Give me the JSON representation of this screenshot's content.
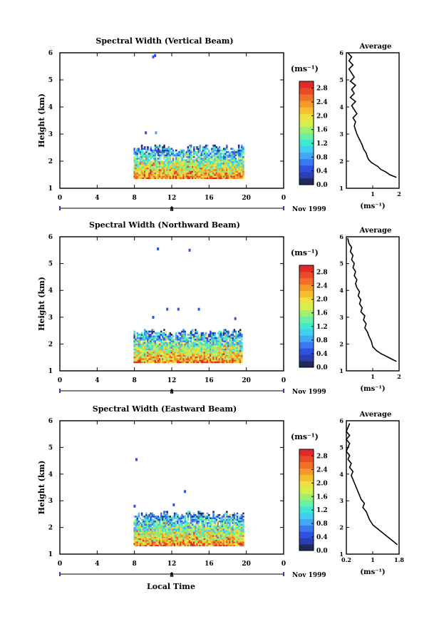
{
  "figure": {
    "xlabel": "Local Time",
    "date_label": "Nov 1999",
    "colorbar_unit": "(ms⁻¹)",
    "colorbar_ticks": [
      "0.0",
      "0.4",
      "0.8",
      "1.2",
      "1.6",
      "2.0",
      "2.4",
      "2.8"
    ],
    "colorbar_range": [
      0.0,
      3.0
    ],
    "colormap": [
      "#1e2a5a",
      "#2b3fae",
      "#3050e0",
      "#3a78f0",
      "#46a6f5",
      "#3fd0f0",
      "#40e8d2",
      "#6af0a4",
      "#a0f070",
      "#d4f050",
      "#f0e040",
      "#f5c030",
      "#f59a28",
      "#f07028",
      "#e84a2a",
      "#e02a2a"
    ],
    "colors": {
      "low_width": "#3050e0",
      "mid_width": "#40e8d2",
      "high_width": "#e02a2a"
    }
  },
  "chart_data": [
    {
      "type": "heatmap",
      "title": "Spectral Width (Vertical Beam)",
      "xlabel": "",
      "ylabel": "Height (km)",
      "xlim": [
        0,
        24
      ],
      "x_ticks": [
        "0",
        "4",
        "8",
        "12",
        "16",
        "20",
        "0"
      ],
      "ylim": [
        1,
        6
      ],
      "y_ticks": [
        "1",
        "2",
        "3",
        "4",
        "5",
        "6"
      ],
      "date_scale_tick": "8",
      "data_extent": {
        "time_start": 7.9,
        "time_end": 19.6,
        "height_min": 1.35,
        "height_max": 2.6
      },
      "isolated_echoes": [
        {
          "time": 9.9,
          "height": 5.85,
          "width": 0.5
        },
        {
          "time": 10.1,
          "height": 5.9,
          "width": 0.5
        },
        {
          "time": 9.1,
          "height": 3.05,
          "width": 0.5
        },
        {
          "time": 10.2,
          "height": 3.05,
          "width": 0.9
        }
      ]
    },
    {
      "type": "heatmap",
      "title": "Spectral Width (Northward Beam)",
      "xlabel": "",
      "ylabel": "Height (km)",
      "xlim": [
        0,
        24
      ],
      "x_ticks": [
        "0",
        "4",
        "8",
        "12",
        "16",
        "20",
        "0"
      ],
      "ylim": [
        1,
        6
      ],
      "y_ticks": [
        "1",
        "2",
        "3",
        "4",
        "5",
        "6"
      ],
      "date_scale_tick": "8",
      "data_extent": {
        "time_start": 7.9,
        "time_end": 19.5,
        "height_min": 1.3,
        "height_max": 2.55
      },
      "isolated_echoes": [
        {
          "time": 10.4,
          "height": 5.55,
          "width": 0.5
        },
        {
          "time": 13.8,
          "height": 5.5,
          "width": 0.5
        },
        {
          "time": 11.4,
          "height": 3.3,
          "width": 0.5
        },
        {
          "time": 12.6,
          "height": 3.3,
          "width": 0.5
        },
        {
          "time": 14.8,
          "height": 3.3,
          "width": 0.5
        },
        {
          "time": 9.9,
          "height": 3.0,
          "width": 0.5
        },
        {
          "time": 18.7,
          "height": 2.95,
          "width": 0.5
        }
      ]
    },
    {
      "type": "heatmap",
      "title": "Spectral Width (Eastward Beam)",
      "xlabel": "Local Time",
      "ylabel": "Height (km)",
      "xlim": [
        0,
        24
      ],
      "x_ticks": [
        "0",
        "4",
        "8",
        "12",
        "16",
        "20",
        "0"
      ],
      "ylim": [
        1,
        6
      ],
      "y_ticks": [
        "1",
        "2",
        "3",
        "4",
        "5",
        "6"
      ],
      "date_scale_tick": "8",
      "data_extent": {
        "time_start": 7.9,
        "time_end": 19.6,
        "height_min": 1.3,
        "height_max": 2.6
      },
      "isolated_echoes": [
        {
          "time": 8.1,
          "height": 4.55,
          "width": 0.5
        },
        {
          "time": 13.3,
          "height": 3.35,
          "width": 0.5
        },
        {
          "time": 7.9,
          "height": 2.8,
          "width": 0.5
        },
        {
          "time": 12.1,
          "height": 2.85,
          "width": 0.5
        }
      ]
    },
    {
      "type": "line",
      "title": "Average",
      "xlabel": "(ms⁻¹)",
      "ylabel": "",
      "xlim": [
        0,
        2
      ],
      "x_ticks": [
        "1",
        "2"
      ],
      "ylim": [
        1,
        6
      ],
      "y_ticks": [
        "1",
        "2",
        "3",
        "4",
        "5",
        "6"
      ],
      "x": [
        1.9,
        1.65,
        1.5,
        1.3,
        1.2,
        0.95,
        0.85,
        0.8,
        0.75,
        0.65,
        0.6,
        0.55,
        0.5,
        0.45,
        0.4,
        0.35,
        0.3,
        0.35,
        0.25,
        0.4,
        0.3,
        0.2,
        0.35,
        0.15,
        0.3,
        0.2,
        0.35,
        0.15,
        0.3,
        0.2,
        0.1,
        0.25,
        0.1,
        0.2,
        0.05
      ],
      "y": [
        1.4,
        1.5,
        1.6,
        1.7,
        1.8,
        1.95,
        2.05,
        2.15,
        2.3,
        2.45,
        2.6,
        2.7,
        2.8,
        2.9,
        3.0,
        3.15,
        3.3,
        3.45,
        3.6,
        3.75,
        3.9,
        4.05,
        4.2,
        4.35,
        4.5,
        4.65,
        4.8,
        4.95,
        5.1,
        5.25,
        5.4,
        5.55,
        5.7,
        5.85,
        6.0
      ]
    },
    {
      "type": "line",
      "title": "Average",
      "xlabel": "(ms⁻¹)",
      "ylabel": "",
      "xlim": [
        0,
        2
      ],
      "x_ticks": [
        "1",
        "2"
      ],
      "ylim": [
        1,
        6
      ],
      "y_ticks": [
        "1",
        "2",
        "3",
        "4",
        "5",
        "6"
      ],
      "x": [
        1.9,
        1.7,
        1.5,
        1.3,
        1.15,
        1.0,
        0.95,
        0.85,
        0.8,
        0.7,
        0.75,
        0.65,
        0.7,
        0.55,
        0.6,
        0.5,
        0.55,
        0.45,
        0.5,
        0.4,
        0.35,
        0.4,
        0.3,
        0.35,
        0.25,
        0.3,
        0.2,
        0.25,
        0.15,
        0.2,
        0.1,
        0.05
      ],
      "y": [
        1.35,
        1.45,
        1.55,
        1.65,
        1.75,
        1.9,
        2.1,
        2.3,
        2.45,
        2.6,
        2.75,
        2.9,
        3.05,
        3.2,
        3.35,
        3.5,
        3.65,
        3.8,
        3.95,
        4.1,
        4.25,
        4.4,
        4.55,
        4.7,
        4.85,
        5.0,
        5.15,
        5.3,
        5.45,
        5.6,
        5.75,
        5.95
      ]
    },
    {
      "type": "line",
      "title": "Average",
      "xlabel": "(ms⁻¹)",
      "ylabel": "",
      "xlim": [
        0.2,
        1.8
      ],
      "x_ticks": [
        "0.2",
        "1",
        "1.8"
      ],
      "ylim": [
        1,
        6
      ],
      "y_ticks": [
        "1",
        "2",
        "3",
        "4",
        "5",
        "6"
      ],
      "x": [
        1.75,
        1.6,
        1.45,
        1.3,
        1.15,
        1.0,
        0.9,
        0.85,
        0.8,
        0.7,
        0.75,
        0.65,
        0.6,
        0.55,
        0.5,
        0.45,
        0.4,
        0.35,
        0.4,
        0.3,
        0.35,
        0.25,
        0.3,
        0.2,
        0.25,
        0.3,
        0.2,
        0.3,
        0.2,
        0.25,
        0.3
      ],
      "y": [
        1.35,
        1.5,
        1.65,
        1.8,
        1.95,
        2.1,
        2.3,
        2.45,
        2.6,
        2.75,
        2.9,
        3.05,
        3.2,
        3.35,
        3.5,
        3.65,
        3.8,
        3.95,
        4.1,
        4.25,
        4.4,
        4.55,
        4.7,
        4.85,
        5.0,
        5.15,
        5.3,
        5.45,
        5.6,
        5.75,
        5.9
      ]
    }
  ]
}
